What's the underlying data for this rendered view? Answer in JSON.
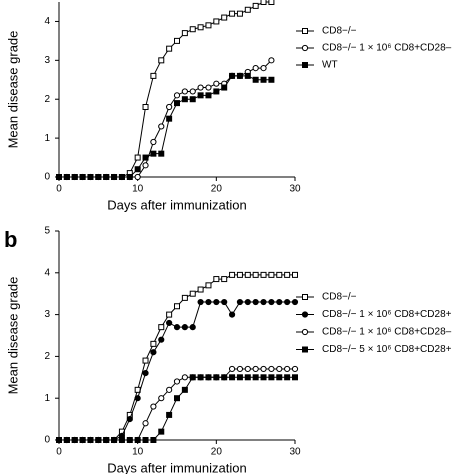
{
  "chart_data": [
    {
      "type": "line",
      "ylabel": "Mean disease grade",
      "xlabel": "Days after immunization",
      "xlim": [
        0,
        30
      ],
      "xticks": [
        0,
        10,
        20,
        30
      ],
      "ylim": [
        0,
        4.5
      ],
      "yticks": [
        0,
        1,
        2,
        3,
        4
      ],
      "x": [
        0,
        1,
        2,
        3,
        4,
        5,
        6,
        7,
        8,
        9,
        10,
        11,
        12,
        13,
        14,
        15,
        16,
        17,
        18,
        19,
        20,
        21,
        22,
        23,
        24,
        25,
        26,
        27
      ],
      "series": [
        {
          "name": "CD8−/−",
          "color": "#000000",
          "marker": "square-open",
          "values": [
            0,
            0,
            0,
            0,
            0,
            0,
            0,
            0,
            0,
            0.1,
            0.5,
            1.8,
            2.6,
            3.0,
            3.3,
            3.5,
            3.7,
            3.8,
            3.85,
            3.9,
            4.0,
            4.1,
            4.2,
            4.2,
            4.3,
            4.4,
            4.5,
            4.5
          ]
        },
        {
          "name": "CD8−/− 1 × 10⁶ CD8+CD28–",
          "color": "#000000",
          "marker": "circle-open",
          "values": [
            0,
            0,
            0,
            0,
            0,
            0,
            0,
            0,
            0,
            0,
            0,
            0.3,
            0.9,
            1.3,
            1.8,
            2.1,
            2.2,
            2.2,
            2.3,
            2.3,
            2.4,
            2.4,
            2.6,
            2.6,
            2.7,
            2.8,
            2.8,
            3.0
          ]
        },
        {
          "name": "WT",
          "color": "#000000",
          "marker": "square-filled",
          "values": [
            0,
            0,
            0,
            0,
            0,
            0,
            0,
            0,
            0,
            0,
            0.2,
            0.5,
            0.6,
            0.6,
            1.5,
            1.9,
            2.0,
            2.0,
            2.1,
            2.1,
            2.2,
            2.3,
            2.6,
            2.6,
            2.6,
            2.5,
            2.5,
            2.5
          ]
        }
      ]
    },
    {
      "type": "line",
      "panel_label": "b",
      "ylabel": "Mean disease grade",
      "xlabel": "Days after immunization",
      "xlim": [
        0,
        30
      ],
      "xticks": [
        0,
        10,
        20,
        30
      ],
      "ylim": [
        0,
        5
      ],
      "yticks": [
        0,
        1,
        2,
        3,
        4,
        5
      ],
      "x": [
        0,
        1,
        2,
        3,
        4,
        5,
        6,
        7,
        8,
        9,
        10,
        11,
        12,
        13,
        14,
        15,
        16,
        17,
        18,
        19,
        20,
        21,
        22,
        23,
        24,
        25,
        26,
        27,
        28,
        29,
        30
      ],
      "series": [
        {
          "name": "CD8−/−",
          "color": "#000000",
          "marker": "square-open",
          "values": [
            0,
            0,
            0,
            0,
            0,
            0,
            0,
            0,
            0.2,
            0.6,
            1.2,
            1.9,
            2.3,
            2.7,
            3.0,
            3.2,
            3.4,
            3.5,
            3.6,
            3.7,
            3.85,
            3.85,
            3.95,
            3.95,
            3.95,
            3.95,
            3.95,
            3.95,
            3.95,
            3.95,
            3.95
          ]
        },
        {
          "name": "CD8−/− 1 × 10⁶ CD8+CD28+",
          "color": "#000000",
          "marker": "circle-filled",
          "values": [
            0,
            0,
            0,
            0,
            0,
            0,
            0,
            0,
            0.1,
            0.5,
            1.0,
            1.6,
            2.1,
            2.4,
            2.8,
            2.7,
            2.7,
            2.7,
            3.3,
            3.3,
            3.3,
            3.3,
            3.0,
            3.3,
            3.3,
            3.3,
            3.3,
            3.3,
            3.3,
            3.3,
            3.3
          ]
        },
        {
          "name": "CD8−/− 1 × 10⁶ CD8+CD28–",
          "color": "#000000",
          "marker": "circle-open",
          "values": [
            0,
            0,
            0,
            0,
            0,
            0,
            0,
            0,
            0,
            0,
            0,
            0.4,
            0.8,
            1.0,
            1.2,
            1.4,
            1.5,
            1.5,
            1.5,
            1.5,
            1.5,
            1.5,
            1.7,
            1.7,
            1.7,
            1.7,
            1.7,
            1.7,
            1.7,
            1.7,
            1.7
          ]
        },
        {
          "name": "CD8−/− 5 × 10⁶ CD8+CD28+",
          "color": "#000000",
          "marker": "square-filled",
          "values": [
            0,
            0,
            0,
            0,
            0,
            0,
            0,
            0,
            0,
            0,
            0,
            0,
            0,
            0.2,
            0.6,
            1.0,
            1.2,
            1.5,
            1.5,
            1.5,
            1.5,
            1.5,
            1.5,
            1.5,
            1.5,
            1.5,
            1.5,
            1.5,
            1.5,
            1.5,
            1.5
          ]
        }
      ]
    }
  ]
}
